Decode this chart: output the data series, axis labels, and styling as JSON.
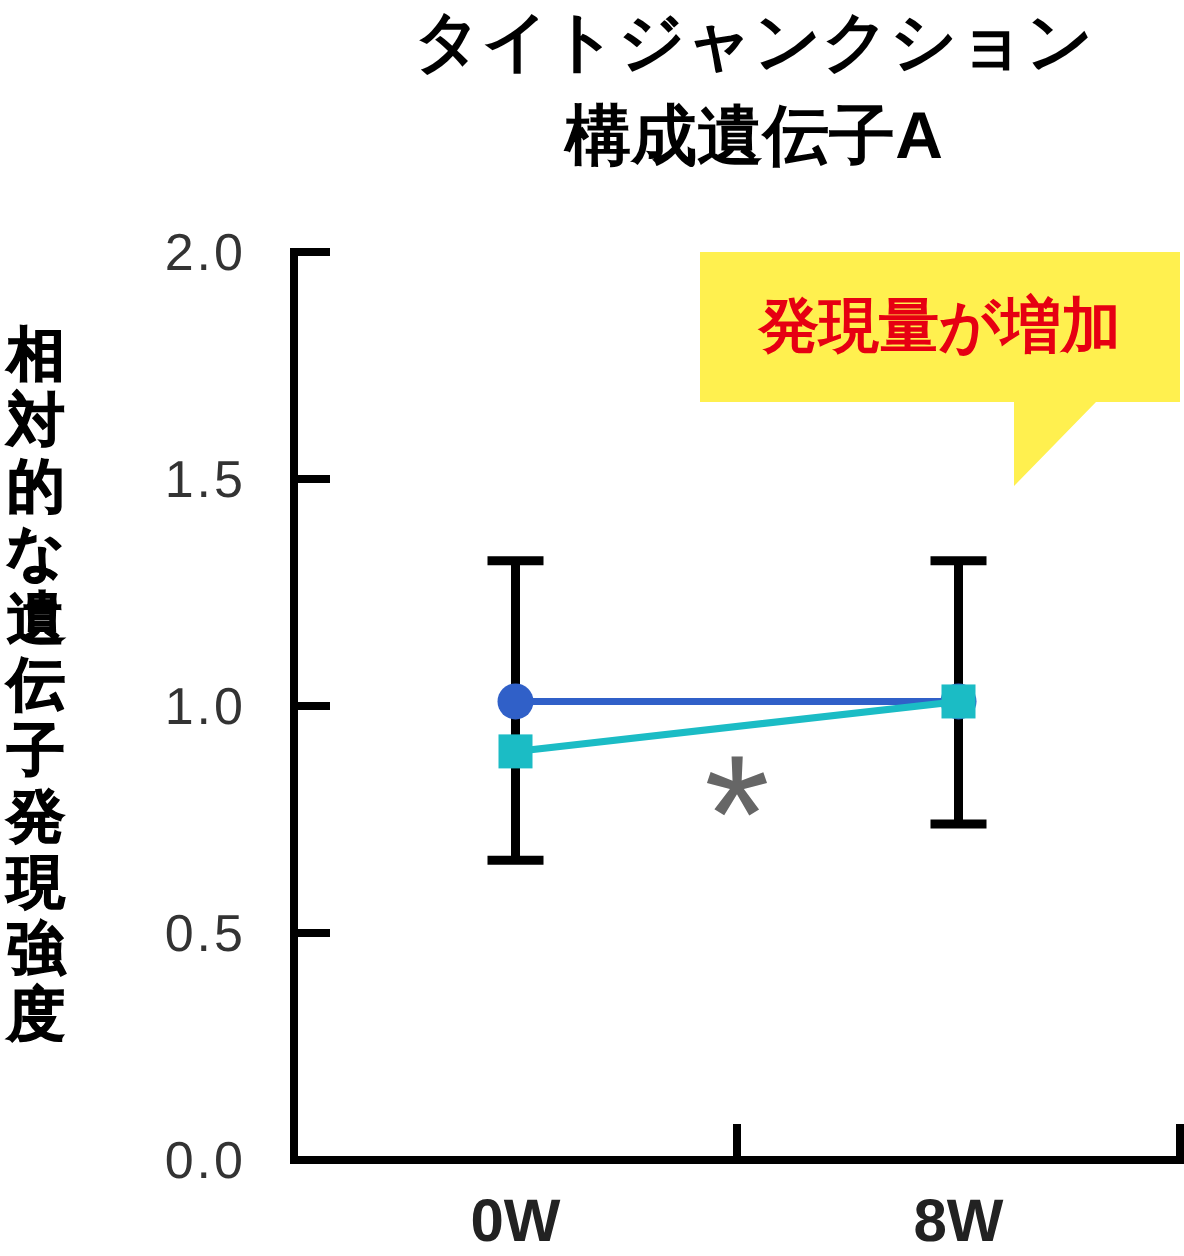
{
  "chart_data": {
    "type": "line",
    "title": "タイトジャンクション構成遺伝子A",
    "ylabel": "相対的な遺伝子発現強度",
    "categories": [
      "0W",
      "8W"
    ],
    "ylim": [
      0,
      2
    ],
    "yticks": [
      {
        "value": 0,
        "label": "0.0"
      },
      {
        "value": 0.5,
        "label": "0.5"
      },
      {
        "value": 1,
        "label": "1.0"
      },
      {
        "value": 1.5,
        "label": "1.5"
      },
      {
        "value": 2,
        "label": "2.0"
      }
    ],
    "series": [
      {
        "color": "#3060c8",
        "marker": "circle",
        "values": [
          1.01,
          1.01
        ],
        "errors": [
          [
            0.66,
            1.32
          ],
          [
            0.74,
            1.32
          ]
        ]
      },
      {
        "color": "#1bbcc5",
        "marker": "square",
        "values": [
          0.9,
          1.01
        ]
      }
    ],
    "annotations": [
      "発現量が増加",
      "*"
    ]
  }
}
